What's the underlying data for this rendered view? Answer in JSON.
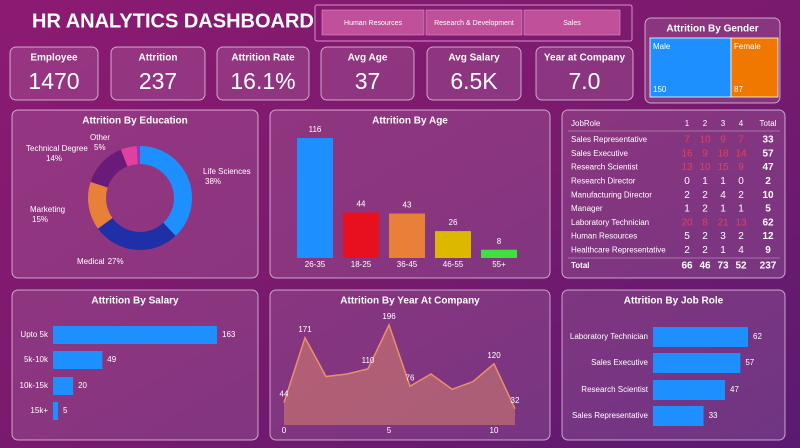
{
  "header": {
    "title": "HR ANALYTICS DASHBOARD"
  },
  "tabs": [
    "Human Resources",
    "Research & Development",
    "Sales"
  ],
  "kpis": [
    {
      "label": "Employee",
      "value": "1470"
    },
    {
      "label": "Attrition",
      "value": "237"
    },
    {
      "label": "Attrition Rate",
      "value": "16.1%"
    },
    {
      "label": "Avg Age",
      "value": "37"
    },
    {
      "label": "Avg Salary",
      "value": "6.5K"
    },
    {
      "label": "Year at Company",
      "value": "7.0"
    }
  ],
  "table": {
    "header": [
      "JobRole",
      "1",
      "2",
      "3",
      "4",
      "Total"
    ],
    "rows": [
      [
        "Sales Representative",
        7,
        10,
        9,
        7,
        33
      ],
      [
        "Sales Executive",
        16,
        9,
        18,
        14,
        57
      ],
      [
        "Research Scientist",
        13,
        10,
        15,
        9,
        47
      ],
      [
        "Research Director",
        0,
        1,
        1,
        0,
        2
      ],
      [
        "Manufacturing Director",
        2,
        2,
        4,
        2,
        10
      ],
      [
        "Manager",
        1,
        2,
        1,
        1,
        5
      ],
      [
        "Laboratory Technician",
        20,
        8,
        21,
        13,
        62
      ],
      [
        "Human Resources",
        5,
        2,
        3,
        2,
        12
      ],
      [
        "Healthcare Representative",
        2,
        2,
        1,
        4,
        9
      ]
    ],
    "totals": [
      "Total",
      66,
      46,
      73,
      52,
      237
    ],
    "highlight_min": 7,
    "highlight_color": "#e0405a"
  },
  "chart_data": [
    {
      "type": "treemap",
      "title": "Attrition By Gender",
      "categories": [
        "Male",
        "Female"
      ],
      "values": [
        150,
        87
      ],
      "colors": [
        "#1e8fff",
        "#f07800"
      ]
    },
    {
      "type": "donut",
      "title": "Attrition By Education",
      "categories": [
        "Life Sciences",
        "Medical",
        "Marketing",
        "Technical Degree",
        "Other",
        null
      ],
      "values": [
        38,
        27,
        15,
        14,
        5,
        1
      ],
      "value_labels": [
        "38%",
        "27%",
        "15%",
        "14%",
        "5%",
        null
      ],
      "colors": [
        "#1e8fff",
        "#1f2fa8",
        "#e8803a",
        "#6a1b7a",
        "#e040a0",
        "#8a3ab9"
      ]
    },
    {
      "type": "bar",
      "title": "Attrition By Age",
      "categories": [
        "26-35",
        "18-25",
        "36-45",
        "46-55",
        "55+"
      ],
      "values": [
        116,
        44,
        43,
        26,
        8
      ],
      "colors": [
        "#1e8fff",
        "#e8101e",
        "#e8803a",
        "#dcb800",
        "#40e040"
      ]
    },
    {
      "type": "hbar",
      "title": "Attrition By Salary",
      "categories": [
        "Upto 5k",
        "5k-10k",
        "10k-15k",
        "15k+"
      ],
      "values": [
        163,
        49,
        20,
        5
      ],
      "color": "#1e8fff"
    },
    {
      "type": "area",
      "title": "Attrition By Year At Company",
      "x": [
        0,
        1,
        2,
        3,
        4,
        5,
        6,
        7,
        8,
        9,
        10,
        11
      ],
      "values": [
        44,
        171,
        95,
        100,
        110,
        196,
        76,
        100,
        70,
        85,
        120,
        32
      ],
      "labeled_points": [
        0,
        1,
        4,
        5,
        6,
        10,
        11
      ],
      "xlim": [
        0,
        11
      ],
      "xticks": [
        0,
        5,
        10
      ],
      "color": "#e8906a"
    },
    {
      "type": "hbar",
      "title": "Attrition By Job Role",
      "categories": [
        "Laboratory Technician",
        "Sales Executive",
        "Research Scientist",
        "Sales Representative"
      ],
      "values": [
        62,
        57,
        47,
        33
      ],
      "color": "#1e8fff"
    }
  ]
}
